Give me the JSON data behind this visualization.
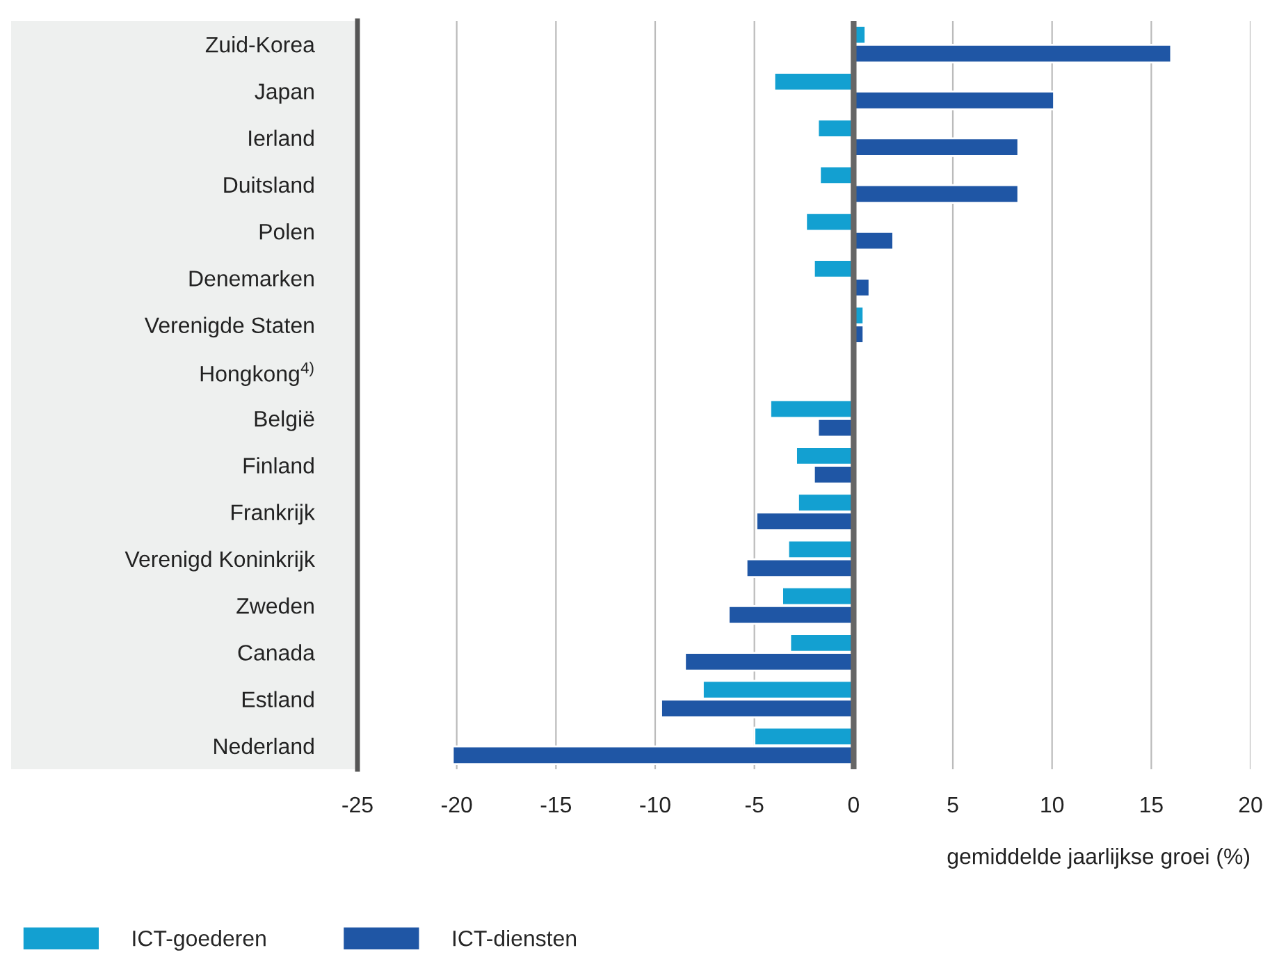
{
  "chart_data": {
    "type": "bar",
    "orientation": "horizontal",
    "xlabel": "gemiddelde jaarlijkse groei (%)",
    "categories": [
      "Zuid-Korea",
      "Japan",
      "Ierland",
      "Duitsland",
      "Polen",
      "Denemarken",
      "Verenigde Staten",
      "Hongkong$^{4)}$",
      "België",
      "Finland",
      "Frankrijk",
      "Verenigd Koninkrijk",
      "Zweden",
      "Canada",
      "Estland",
      "Nederland"
    ],
    "series": [
      {
        "name": "ICT-goederen",
        "color": "#13a0d1",
        "values": [
          0.6,
          -4.0,
          -1.8,
          -1.7,
          -2.4,
          -2.0,
          0.5,
          null,
          -4.2,
          -2.9,
          -2.8,
          -3.3,
          -3.6,
          -3.2,
          -7.6,
          -5.0
        ]
      },
      {
        "name": "ICT-diensten",
        "color": "#1f56a5",
        "values": [
          16.0,
          10.1,
          8.3,
          8.3,
          2.0,
          0.8,
          0.5,
          null,
          -1.8,
          -2.0,
          -4.9,
          -5.4,
          -6.3,
          -8.5,
          -9.7,
          -20.2
        ]
      }
    ],
    "xlim": [
      -25,
      20
    ],
    "xticks": [
      -25,
      -20,
      -15,
      -10,
      -5,
      0,
      5,
      10,
      15,
      20
    ],
    "ref_lines": [
      {
        "axis": "x",
        "value": 0,
        "color": "#666666"
      }
    ],
    "grid": "x",
    "legend": "bottom left"
  }
}
